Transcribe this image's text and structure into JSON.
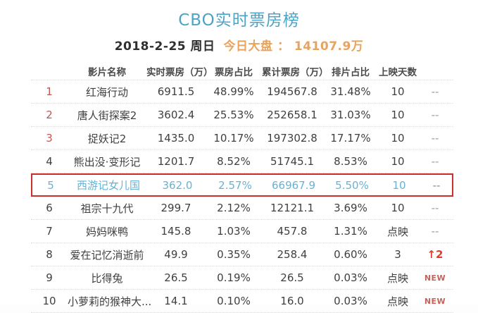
{
  "header": {
    "title": "CBO实时票房榜",
    "date": "2018-2-25 周日",
    "daily_total_label": "今日大盘 ：",
    "daily_total_value": "14107.9万"
  },
  "table": {
    "columns": [
      "影片名称",
      "实时票房（万）",
      "票房占比",
      "累计票房（万）",
      "排片占比",
      "上映天数"
    ],
    "rows": [
      {
        "rank": "1",
        "name": "红海行动",
        "realtime": "6911.5",
        "share": "48.99%",
        "cumulative": "194567.8",
        "screening": "31.48%",
        "days": "10",
        "trend": "--",
        "trend_type": "dash",
        "top3": true,
        "highlight": false
      },
      {
        "rank": "2",
        "name": "唐人街探案2",
        "realtime": "3602.4",
        "share": "25.53%",
        "cumulative": "252658.1",
        "screening": "31.03%",
        "days": "10",
        "trend": "--",
        "trend_type": "dash",
        "top3": true,
        "highlight": false
      },
      {
        "rank": "3",
        "name": "捉妖记2",
        "realtime": "1435.0",
        "share": "10.17%",
        "cumulative": "197302.8",
        "screening": "17.17%",
        "days": "10",
        "trend": "--",
        "trend_type": "dash",
        "top3": true,
        "highlight": false
      },
      {
        "rank": "4",
        "name": "熊出没·变形记",
        "realtime": "1201.7",
        "share": "8.52%",
        "cumulative": "51745.1",
        "screening": "8.53%",
        "days": "10",
        "trend": "--",
        "trend_type": "dash",
        "top3": false,
        "highlight": false
      },
      {
        "rank": "5",
        "name": "西游记女儿国",
        "realtime": "362.0",
        "share": "2.57%",
        "cumulative": "66967.9",
        "screening": "5.50%",
        "days": "10",
        "trend": "--",
        "trend_type": "dash",
        "top3": false,
        "highlight": true
      },
      {
        "rank": "6",
        "name": "祖宗十九代",
        "realtime": "299.7",
        "share": "2.12%",
        "cumulative": "12121.1",
        "screening": "3.69%",
        "days": "10",
        "trend": "--",
        "trend_type": "dash",
        "top3": false,
        "highlight": false
      },
      {
        "rank": "7",
        "name": "妈妈咪鸭",
        "realtime": "145.8",
        "share": "1.03%",
        "cumulative": "457.8",
        "screening": "1.31%",
        "days": "点映",
        "trend": "--",
        "trend_type": "dash",
        "top3": false,
        "highlight": false
      },
      {
        "rank": "8",
        "name": "爱在记忆消逝前",
        "realtime": "49.9",
        "share": "0.35%",
        "cumulative": "258.4",
        "screening": "0.60%",
        "days": "3",
        "trend": "↑2",
        "trend_type": "up",
        "top3": false,
        "highlight": false
      },
      {
        "rank": "9",
        "name": "比得兔",
        "realtime": "26.5",
        "share": "0.19%",
        "cumulative": "26.5",
        "screening": "0.03%",
        "days": "点映",
        "trend": "NEW",
        "trend_type": "new",
        "top3": false,
        "highlight": false
      },
      {
        "rank": "10",
        "name": "小萝莉的猴神大...",
        "realtime": "14.1",
        "share": "0.10%",
        "cumulative": "16.0",
        "screening": "0.03%",
        "days": "点映",
        "trend": "NEW",
        "trend_type": "new",
        "top3": false,
        "highlight": false
      }
    ]
  },
  "colors": {
    "title_blue": "#4BA4C8",
    "daily_total_orange": "#E8A35F",
    "rank_top3_red": "#C0574F",
    "highlight_text_blue": "#68B2D3",
    "highlight_border_red": "#C9302C",
    "new_badge_red": "#C4635C",
    "trend_up_red": "#E23B30",
    "body_text": "#3F3F3F",
    "dash_gray": "#9E9E9E"
  }
}
